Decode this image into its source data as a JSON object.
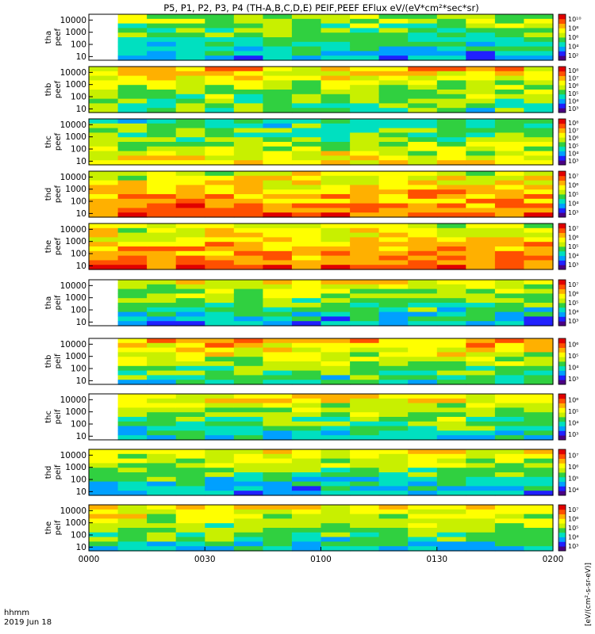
{
  "title": "P5, P1, P2, P3, P4 (TH-A,B,C,D,E) PEIF,PEEF EFlux eV/(eV*cm²*sec*sr)",
  "colorbar_unit": "[eV/(cm²-s-sr-eV)]",
  "x_axis": {
    "ticks": [
      "0000",
      "0030",
      "0100",
      "0130",
      "0200"
    ],
    "label_line1": "hhmm",
    "label_line2": "2019 Jun 18"
  },
  "chart_data": {
    "type": "heatmap",
    "title": "P5, P1, P2, P3, P4 (TH-A,B,C,D,E) PEIF,PEEF EFlux eV/(eV*cm²*sec*sr)",
    "x_range": [
      "00:00",
      "02:00"
    ],
    "y_scale": "log",
    "y_range": [
      5,
      30000
    ],
    "y_ticks": [
      "10",
      "100",
      "1000",
      "10000"
    ],
    "panels": [
      {
        "probe": "tha",
        "product": "peef",
        "ylabel": "tha\npeef",
        "cbar_labels": [
          "10²",
          "10⁴",
          "10⁶",
          "10⁸",
          "10¹⁰"
        ],
        "level": 0.42
      },
      {
        "probe": "thb",
        "product": "peef",
        "ylabel": "thb\npeef",
        "cbar_labels": [
          "10³",
          "10⁴",
          "10⁵",
          "10⁶",
          "10⁷",
          "10⁸"
        ],
        "level": 0.55
      },
      {
        "probe": "thc",
        "product": "peef",
        "ylabel": "thc\npeef",
        "cbar_labels": [
          "10³",
          "10⁴",
          "10⁵",
          "10⁶",
          "10⁷",
          "10⁸"
        ],
        "level": 0.52
      },
      {
        "probe": "thd",
        "product": "peef",
        "ylabel": "thd\npeef",
        "cbar_labels": [
          "10³",
          "10⁴",
          "10⁵",
          "10⁶",
          "10⁷"
        ],
        "level": 0.72
      },
      {
        "probe": "the",
        "product": "peef",
        "ylabel": "the\npeef",
        "cbar_labels": [
          "10³",
          "10⁴",
          "10⁵",
          "10⁶",
          "10⁷"
        ],
        "level": 0.72
      },
      {
        "probe": "tha",
        "product": "peif",
        "ylabel": "tha\npeif",
        "cbar_labels": [
          "10³",
          "10⁴",
          "10⁵",
          "10⁶",
          "10⁷"
        ],
        "level": 0.45
      },
      {
        "probe": "thb",
        "product": "peif",
        "ylabel": "thb\npeif",
        "cbar_labels": [
          "10³",
          "10⁴",
          "10⁵",
          "10⁶"
        ],
        "level": 0.55
      },
      {
        "probe": "thc",
        "product": "peif",
        "ylabel": "thc\npeif",
        "cbar_labels": [
          "10³",
          "10⁴",
          "10⁵",
          "10⁶"
        ],
        "level": 0.5
      },
      {
        "probe": "thd",
        "product": "peif",
        "ylabel": "thd\npeif",
        "cbar_labels": [
          "10⁴",
          "10⁵",
          "10⁶",
          "10⁷"
        ],
        "level": 0.45
      },
      {
        "probe": "the",
        "product": "peif",
        "ylabel": "the\npeif",
        "cbar_labels": [
          "10³",
          "10⁴",
          "10⁵",
          "10⁶",
          "10⁷"
        ],
        "level": 0.5
      }
    ]
  },
  "colors": {
    "scale": [
      "#ffffff",
      "#4b0082",
      "#2020ff",
      "#00a0ff",
      "#00e0c0",
      "#30d040",
      "#c8f000",
      "#ffff00",
      "#ffb000",
      "#ff5000",
      "#e00000"
    ]
  }
}
